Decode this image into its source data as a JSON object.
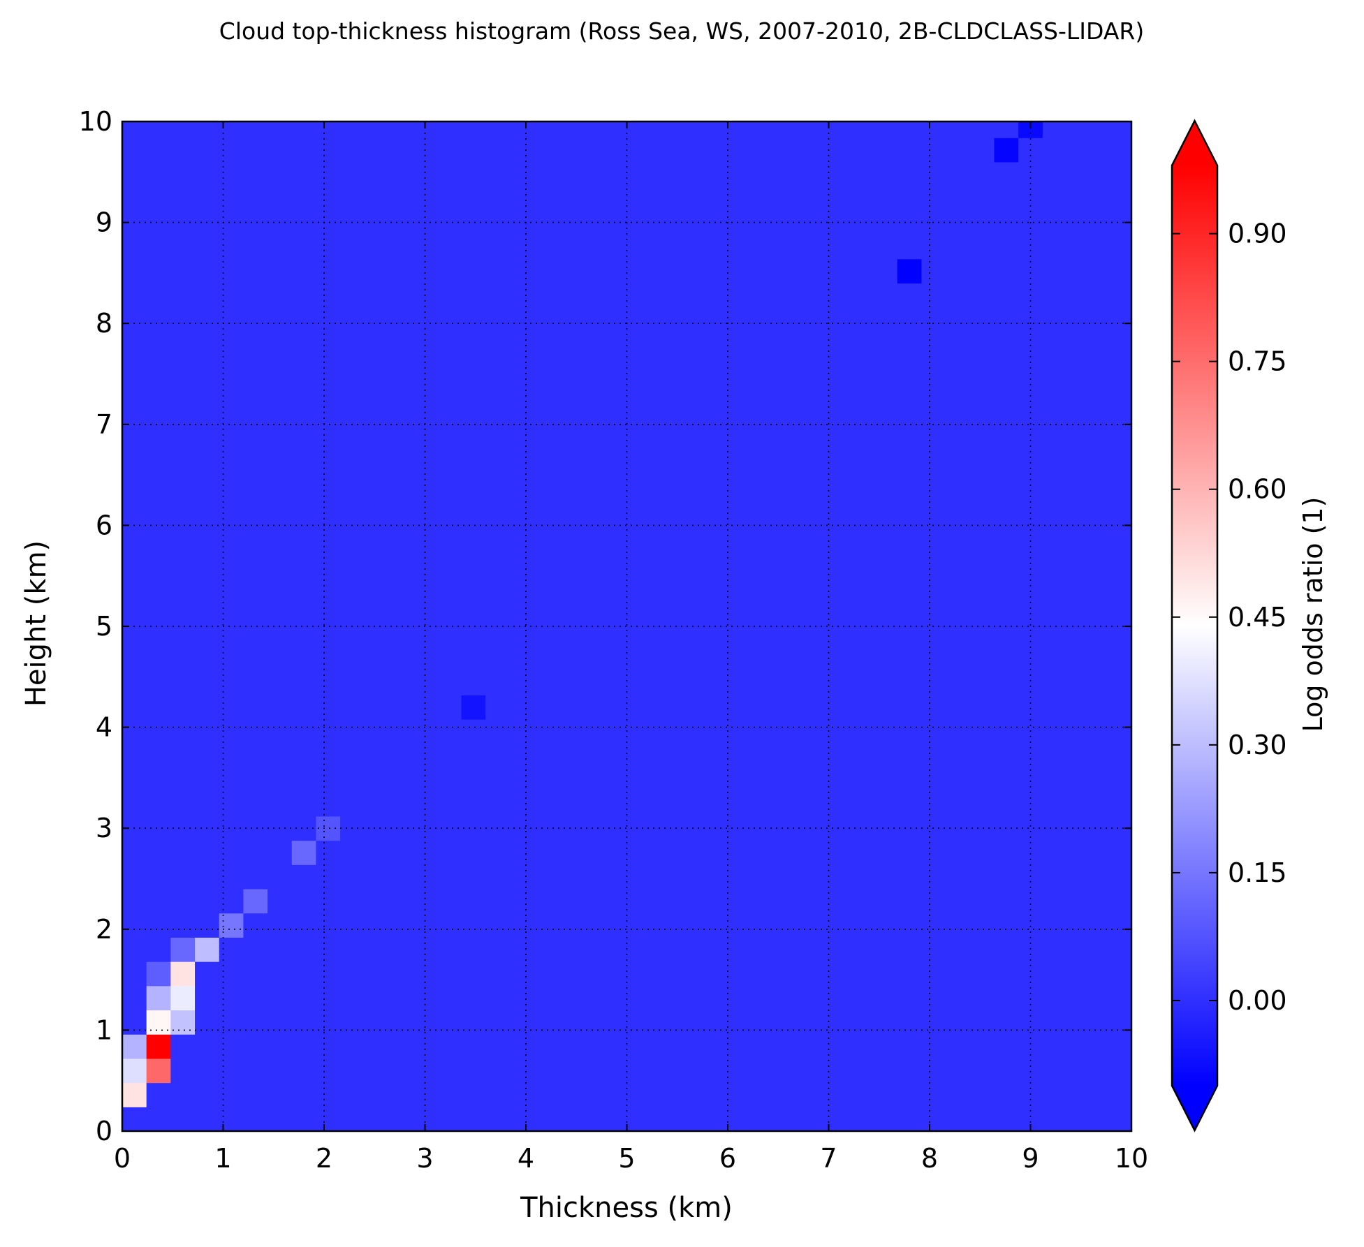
{
  "chart_data": {
    "type": "heatmap",
    "title": "Cloud top-thickness histogram (Ross Sea, WS, 2007-2010, 2B-CLDCLASS-LIDAR)",
    "xlabel": "Thickness (km)",
    "ylabel": "Height (km)",
    "xlim": [
      0,
      10
    ],
    "ylim": [
      0,
      10
    ],
    "x_ticks": [
      "0",
      "1",
      "2",
      "3",
      "4",
      "5",
      "6",
      "7",
      "8",
      "9",
      "10"
    ],
    "y_ticks": [
      "0",
      "1",
      "2",
      "3",
      "4",
      "5",
      "6",
      "7",
      "8",
      "9",
      "10"
    ],
    "grid": true,
    "bin_size_km": 0.24,
    "colorbar": {
      "label": "Log odds ratio (1)",
      "vmin": -0.1,
      "vmax": 0.98,
      "extend": "both",
      "ticks": [
        "0.00",
        "0.15",
        "0.30",
        "0.45",
        "0.60",
        "0.75",
        "0.90"
      ],
      "tick_values": [
        0.0,
        0.15,
        0.3,
        0.45,
        0.6,
        0.75,
        0.9
      ],
      "colormap": "bwr",
      "colors": {
        "low": "#0000ff",
        "mid": "#ffffff",
        "high": "#ff0000"
      }
    },
    "background_value": 0.0,
    "notable_cells": [
      {
        "thickness": 0.36,
        "height": 0.84,
        "value": 0.98
      },
      {
        "thickness": 0.36,
        "height": 0.6,
        "value": 0.76
      },
      {
        "thickness": 0.36,
        "height": 1.08,
        "value": 0.46
      },
      {
        "thickness": 0.6,
        "height": 1.56,
        "value": 0.5
      },
      {
        "thickness": 0.6,
        "height": 1.32,
        "value": 0.4
      },
      {
        "thickness": 0.6,
        "height": 1.08,
        "value": 0.31
      },
      {
        "thickness": 0.84,
        "height": 1.8,
        "value": 0.3
      },
      {
        "thickness": 0.12,
        "height": 0.36,
        "value": 0.5
      },
      {
        "thickness": 0.12,
        "height": 0.6,
        "value": 0.37
      },
      {
        "thickness": 0.12,
        "height": 0.84,
        "value": 0.28
      },
      {
        "thickness": 0.36,
        "height": 1.32,
        "value": 0.28
      },
      {
        "thickness": 0.36,
        "height": 1.56,
        "value": 0.1
      },
      {
        "thickness": 0.6,
        "height": 1.8,
        "value": 0.12
      },
      {
        "thickness": 1.08,
        "height": 2.04,
        "value": 0.15
      },
      {
        "thickness": 1.32,
        "height": 2.28,
        "value": 0.12
      },
      {
        "thickness": 1.8,
        "height": 2.76,
        "value": 0.12
      },
      {
        "thickness": 2.04,
        "height": 3.0,
        "value": 0.08
      },
      {
        "thickness": 3.36,
        "height": 4.08,
        "value": -0.06
      },
      {
        "thickness": 7.68,
        "height": 8.4,
        "value": -0.1
      },
      {
        "thickness": 8.64,
        "height": 9.6,
        "value": -0.09
      },
      {
        "thickness": 8.88,
        "height": 9.84,
        "value": -0.08
      }
    ]
  }
}
